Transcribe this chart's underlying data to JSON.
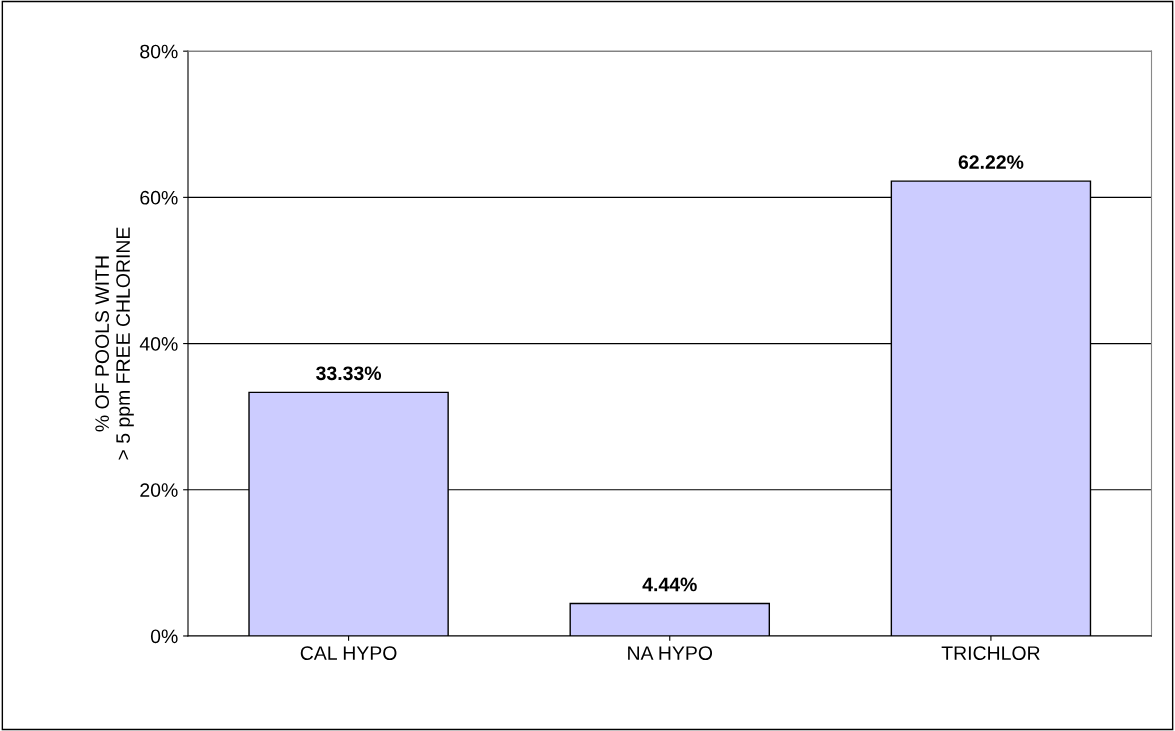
{
  "chart_data": {
    "type": "bar",
    "ylabel": "% OF POOLS WITH\n> 5 ppm FREE CHLORINE",
    "categories": [
      "CAL HYPO",
      "NA HYPO",
      "TRICHLOR"
    ],
    "values": [
      33.33,
      4.44,
      62.22
    ],
    "value_labels": [
      "33.33%",
      "4.44%",
      "62.22%"
    ],
    "color": "#ccccff",
    "ylim": [
      0,
      80
    ],
    "yticks": [
      {
        "value": 0,
        "label": "0%"
      },
      {
        "value": 20,
        "label": "20%"
      },
      {
        "value": 40,
        "label": "40%"
      },
      {
        "value": 60,
        "label": "60%"
      },
      {
        "value": 80,
        "label": "80%"
      }
    ],
    "grid": "y"
  }
}
